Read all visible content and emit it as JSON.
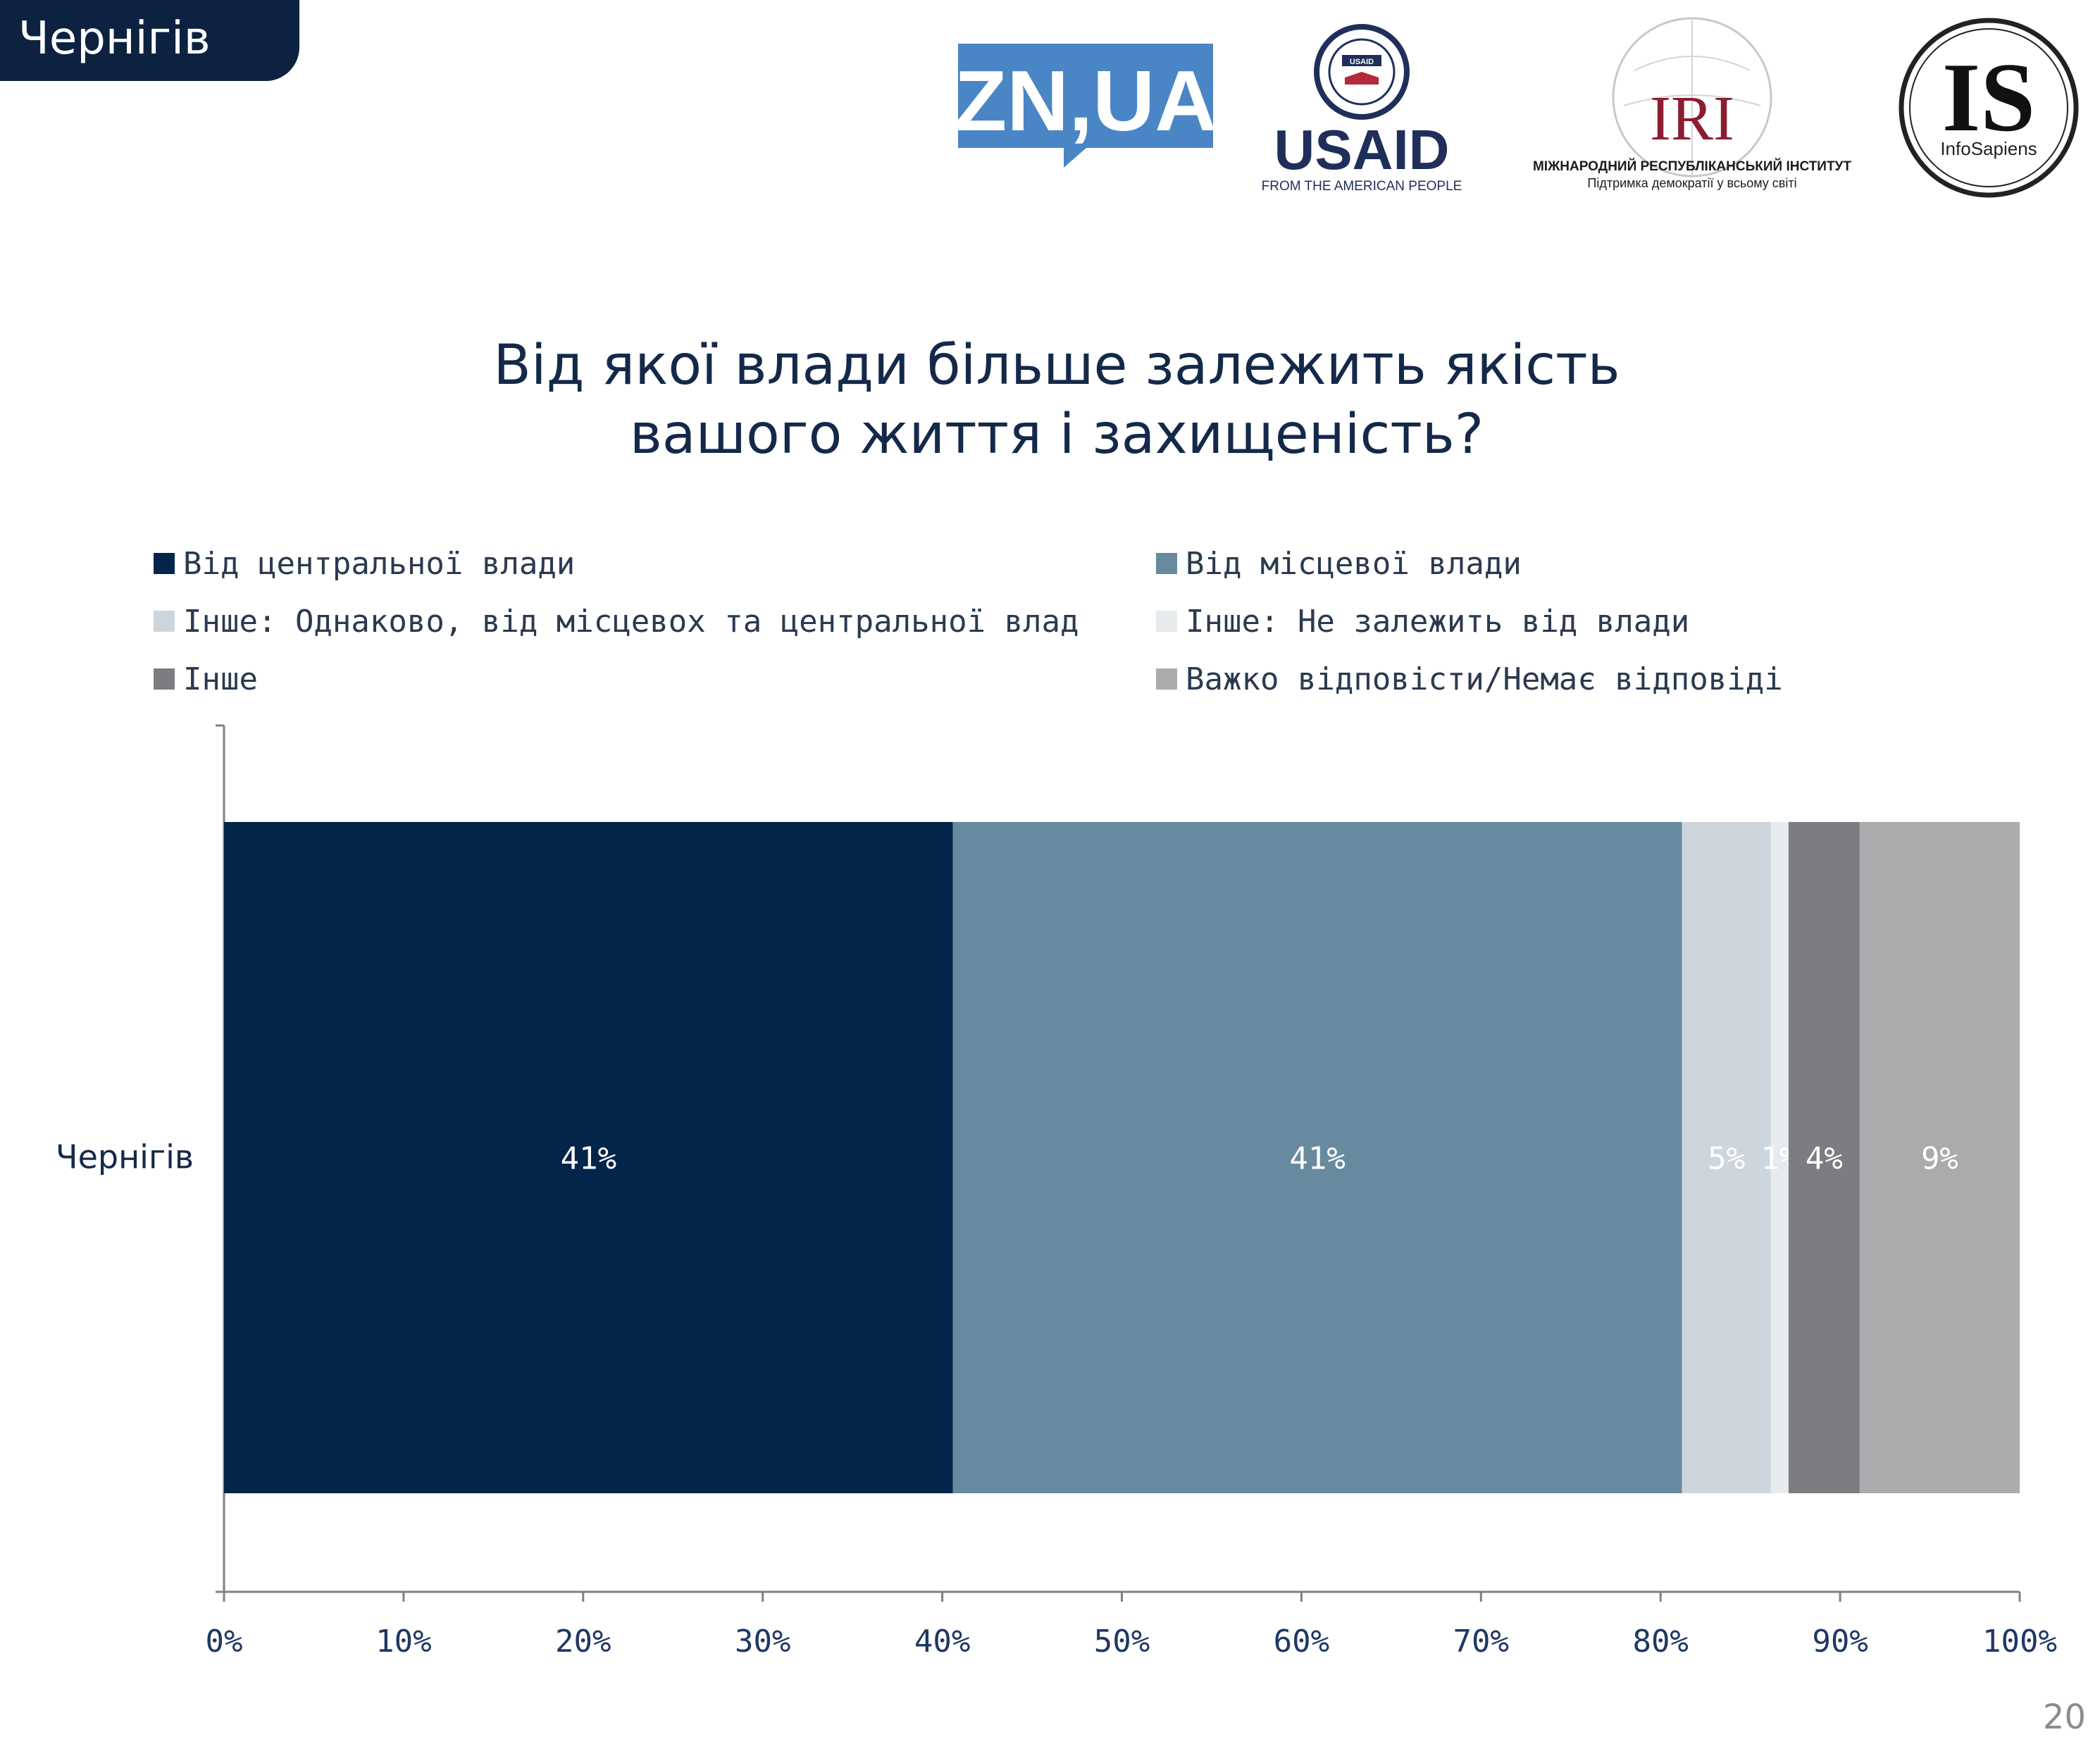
{
  "region_tab": "Чернігів",
  "logos": {
    "zn": "ZN,UA",
    "usaid": "USAID",
    "usaid_tagline": "FROM THE AMERICAN PEOPLE",
    "usaid_seal": "USAID",
    "iri": "IRI",
    "iri_name": "МІЖНАРОДНИЙ РЕСПУБЛІКАНСЬКИЙ ІНСТИТУТ",
    "iri_tagline": "Підтримка демократії у всьому світі",
    "is": "IS",
    "is_name": "InfoSapiens"
  },
  "page_number": "20",
  "chart_data": {
    "type": "bar",
    "orientation": "horizontal",
    "stacked": true,
    "title_lines": [
      "Від якої влади більше залежить якість",
      "вашого життя і захищеність?"
    ],
    "categories": [
      "Чернігів"
    ],
    "series": [
      {
        "name": "Від центральної влади",
        "values": [
          41
        ],
        "label": "41%",
        "color": "#04254a"
      },
      {
        "name": "Від місцевої влади",
        "values": [
          41
        ],
        "label": "41%",
        "color": "#688a9e"
      },
      {
        "name": "Інше: Однаково, від місцевох та центральної влад",
        "values": [
          5
        ],
        "label": "5%",
        "color": "#ced6dd"
      },
      {
        "name": "Інше: Не залежить від влади",
        "values": [
          1
        ],
        "label": "1%",
        "color": "#e7ebee"
      },
      {
        "name": "Інше",
        "values": [
          4
        ],
        "label": "4%",
        "color": "#7b7d81"
      },
      {
        "name": "Важко відповісти/Немає відповіді",
        "values": [
          9
        ],
        "label": "9%",
        "color": "#ababad"
      }
    ],
    "xlim": [
      0,
      101
    ],
    "x_ticks": [
      0,
      10,
      20,
      30,
      40,
      50,
      60,
      70,
      80,
      90,
      100
    ],
    "x_tick_labels": [
      "0%",
      "10%",
      "20%",
      "30%",
      "40%",
      "50%",
      "60%",
      "70%",
      "80%",
      "90%",
      "100%"
    ],
    "grid": false,
    "legend_position": "top",
    "legend_columns": 2
  }
}
